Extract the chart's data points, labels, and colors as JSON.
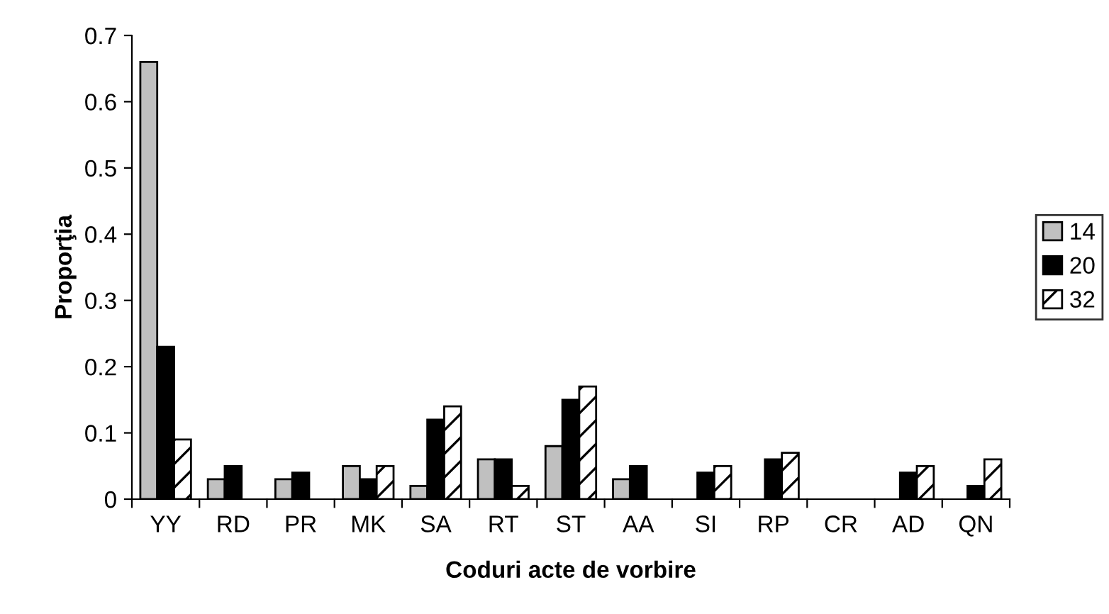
{
  "chart_data": {
    "type": "bar",
    "xlabel": "Coduri acte de vorbire",
    "ylabel": "Proporţia",
    "categories": [
      "YY",
      "RD",
      "PR",
      "MK",
      "SA",
      "RT",
      "ST",
      "AA",
      "SI",
      "RP",
      "CR",
      "AD",
      "QN"
    ],
    "series": [
      {
        "name": "14",
        "color": "#c0c0c0",
        "values": [
          0.66,
          0.03,
          0.03,
          0.05,
          0.02,
          0.06,
          0.08,
          0.03,
          null,
          null,
          null,
          null,
          null
        ]
      },
      {
        "name": "20",
        "color": "#000000",
        "values": [
          0.23,
          0.05,
          0.04,
          0.03,
          0.12,
          0.06,
          0.15,
          0.05,
          0.04,
          0.06,
          null,
          0.04,
          0.02
        ]
      },
      {
        "name": "32",
        "color": "#ffffff",
        "values": [
          0.09,
          null,
          null,
          0.05,
          0.14,
          0.02,
          0.17,
          null,
          0.05,
          0.07,
          null,
          0.05,
          0.06
        ]
      }
    ],
    "ylim": [
      0,
      0.7
    ],
    "yticks": [
      0,
      0.1,
      0.2,
      0.3,
      0.4,
      0.5,
      0.6,
      0.7
    ],
    "grid": false,
    "legend": "right"
  }
}
